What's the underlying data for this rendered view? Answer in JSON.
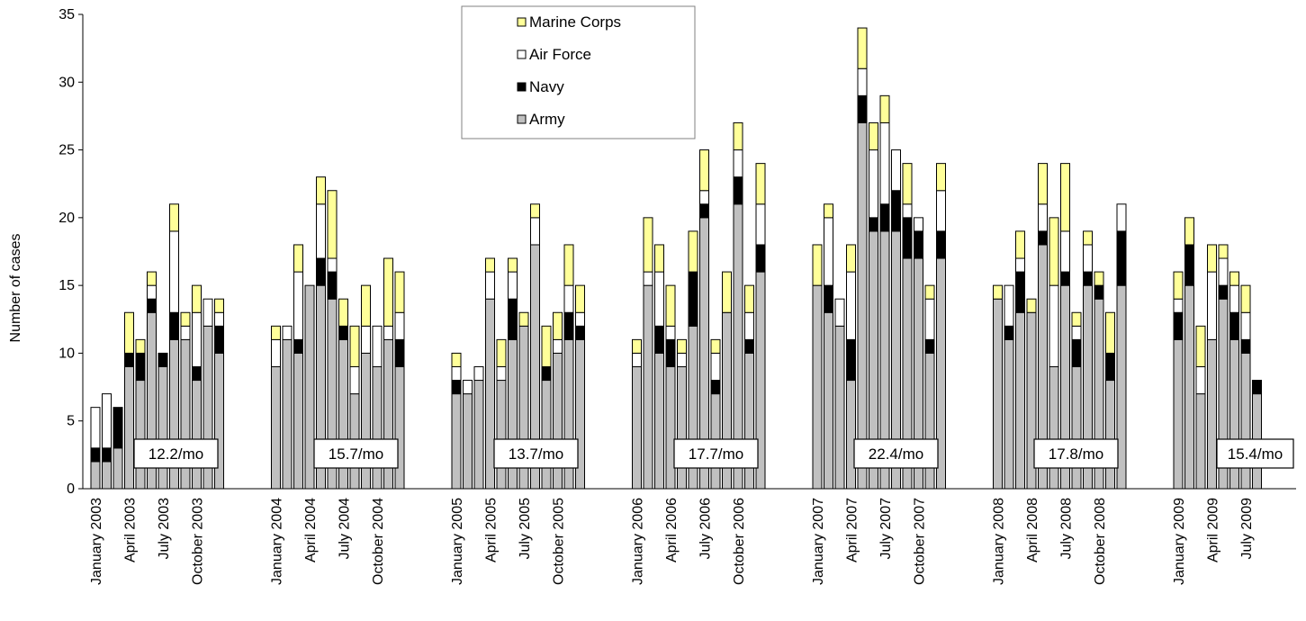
{
  "chart_data": {
    "type": "bar",
    "stacked": true,
    "ylabel": "Number of cases",
    "ylim": [
      0,
      35
    ],
    "yticks": [
      0,
      5,
      10,
      15,
      20,
      25,
      30,
      35
    ],
    "legend_position": "top-center",
    "series": [
      {
        "name": "Army",
        "color": "#c0c0c0"
      },
      {
        "name": "Navy",
        "color": "#000000"
      },
      {
        "name": "Air Force",
        "color": "#ffffff"
      },
      {
        "name": "Marine Corps",
        "color": "#ffff99"
      }
    ],
    "legend_order": [
      "Marine Corps",
      "Air Force",
      "Navy",
      "Army"
    ],
    "years": [
      {
        "year": 2003,
        "average_label": "12.2/mo",
        "tick_labels": [
          {
            "month_index": 0,
            "label": "January 2003"
          },
          {
            "month_index": 3,
            "label": "April 2003"
          },
          {
            "month_index": 6,
            "label": "July 2003"
          },
          {
            "month_index": 9,
            "label": "October 2003"
          }
        ],
        "months": [
          {
            "Army": 2,
            "Navy": 1,
            "Air Force": 3,
            "Marine Corps": 0
          },
          {
            "Army": 2,
            "Navy": 1,
            "Air Force": 4,
            "Marine Corps": 0
          },
          {
            "Army": 3,
            "Navy": 3,
            "Air Force": 0,
            "Marine Corps": 0
          },
          {
            "Army": 9,
            "Navy": 1,
            "Air Force": 0,
            "Marine Corps": 3
          },
          {
            "Army": 8,
            "Navy": 2,
            "Air Force": 0,
            "Marine Corps": 1
          },
          {
            "Army": 13,
            "Navy": 1,
            "Air Force": 1,
            "Marine Corps": 1
          },
          {
            "Army": 9,
            "Navy": 1,
            "Air Force": 0,
            "Marine Corps": 0
          },
          {
            "Army": 11,
            "Navy": 2,
            "Air Force": 6,
            "Marine Corps": 2
          },
          {
            "Army": 11,
            "Navy": 0,
            "Air Force": 1,
            "Marine Corps": 1
          },
          {
            "Army": 8,
            "Navy": 1,
            "Air Force": 4,
            "Marine Corps": 2
          },
          {
            "Army": 12,
            "Navy": 0,
            "Air Force": 2,
            "Marine Corps": 0
          },
          {
            "Army": 10,
            "Navy": 2,
            "Air Force": 1,
            "Marine Corps": 1
          }
        ]
      },
      {
        "year": 2004,
        "average_label": "15.7/mo",
        "tick_labels": [
          {
            "month_index": 0,
            "label": "January 2004"
          },
          {
            "month_index": 3,
            "label": "April 2004"
          },
          {
            "month_index": 6,
            "label": "July 2004"
          },
          {
            "month_index": 9,
            "label": "October 2004"
          }
        ],
        "months": [
          {
            "Army": 9,
            "Navy": 0,
            "Air Force": 2,
            "Marine Corps": 1
          },
          {
            "Army": 11,
            "Navy": 0,
            "Air Force": 1,
            "Marine Corps": 0
          },
          {
            "Army": 10,
            "Navy": 1,
            "Air Force": 5,
            "Marine Corps": 2
          },
          {
            "Army": 15,
            "Navy": 0,
            "Air Force": 0,
            "Marine Corps": 0
          },
          {
            "Army": 15,
            "Navy": 2,
            "Air Force": 4,
            "Marine Corps": 2
          },
          {
            "Army": 14,
            "Navy": 2,
            "Air Force": 1,
            "Marine Corps": 5
          },
          {
            "Army": 11,
            "Navy": 1,
            "Air Force": 0,
            "Marine Corps": 2
          },
          {
            "Army": 7,
            "Navy": 0,
            "Air Force": 2,
            "Marine Corps": 3
          },
          {
            "Army": 10,
            "Navy": 0,
            "Air Force": 2,
            "Marine Corps": 3
          },
          {
            "Army": 9,
            "Navy": 0,
            "Air Force": 3,
            "Marine Corps": 0
          },
          {
            "Army": 11,
            "Navy": 0,
            "Air Force": 1,
            "Marine Corps": 5
          },
          {
            "Army": 9,
            "Navy": 2,
            "Air Force": 2,
            "Marine Corps": 3
          }
        ]
      },
      {
        "year": 2005,
        "average_label": "13.7/mo",
        "tick_labels": [
          {
            "month_index": 0,
            "label": "January 2005"
          },
          {
            "month_index": 3,
            "label": "April 2005"
          },
          {
            "month_index": 6,
            "label": "July 2005"
          },
          {
            "month_index": 9,
            "label": "October 2005"
          }
        ],
        "months": [
          {
            "Army": 7,
            "Navy": 1,
            "Air Force": 1,
            "Marine Corps": 1
          },
          {
            "Army": 7,
            "Navy": 0,
            "Air Force": 1,
            "Marine Corps": 0
          },
          {
            "Army": 8,
            "Navy": 0,
            "Air Force": 1,
            "Marine Corps": 0
          },
          {
            "Army": 14,
            "Navy": 0,
            "Air Force": 2,
            "Marine Corps": 1
          },
          {
            "Army": 8,
            "Navy": 0,
            "Air Force": 1,
            "Marine Corps": 2
          },
          {
            "Army": 11,
            "Navy": 3,
            "Air Force": 2,
            "Marine Corps": 1
          },
          {
            "Army": 12,
            "Navy": 0,
            "Air Force": 0,
            "Marine Corps": 1
          },
          {
            "Army": 18,
            "Navy": 0,
            "Air Force": 2,
            "Marine Corps": 1
          },
          {
            "Army": 8,
            "Navy": 1,
            "Air Force": 0,
            "Marine Corps": 3
          },
          {
            "Army": 10,
            "Navy": 0,
            "Air Force": 1,
            "Marine Corps": 2
          },
          {
            "Army": 11,
            "Navy": 2,
            "Air Force": 2,
            "Marine Corps": 3
          },
          {
            "Army": 11,
            "Navy": 1,
            "Air Force": 1,
            "Marine Corps": 2
          }
        ]
      },
      {
        "year": 2006,
        "average_label": "17.7/mo",
        "tick_labels": [
          {
            "month_index": 0,
            "label": "January 2006"
          },
          {
            "month_index": 3,
            "label": "April 2006"
          },
          {
            "month_index": 6,
            "label": "July 2006"
          },
          {
            "month_index": 9,
            "label": "October 2006"
          }
        ],
        "months": [
          {
            "Army": 9,
            "Navy": 0,
            "Air Force": 1,
            "Marine Corps": 1
          },
          {
            "Army": 15,
            "Navy": 0,
            "Air Force": 1,
            "Marine Corps": 4
          },
          {
            "Army": 10,
            "Navy": 2,
            "Air Force": 4,
            "Marine Corps": 2
          },
          {
            "Army": 9,
            "Navy": 2,
            "Air Force": 1,
            "Marine Corps": 3
          },
          {
            "Army": 9,
            "Navy": 0,
            "Air Force": 1,
            "Marine Corps": 1
          },
          {
            "Army": 12,
            "Navy": 4,
            "Air Force": 0,
            "Marine Corps": 3
          },
          {
            "Army": 20,
            "Navy": 1,
            "Air Force": 1,
            "Marine Corps": 3
          },
          {
            "Army": 7,
            "Navy": 1,
            "Air Force": 2,
            "Marine Corps": 1
          },
          {
            "Army": 13,
            "Navy": 0,
            "Air Force": 0,
            "Marine Corps": 3
          },
          {
            "Army": 21,
            "Navy": 2,
            "Air Force": 2,
            "Marine Corps": 2
          },
          {
            "Army": 10,
            "Navy": 1,
            "Air Force": 2,
            "Marine Corps": 2
          },
          {
            "Army": 16,
            "Navy": 2,
            "Air Force": 3,
            "Marine Corps": 3
          }
        ]
      },
      {
        "year": 2007,
        "average_label": "22.4/mo",
        "tick_labels": [
          {
            "month_index": 0,
            "label": "January 2007"
          },
          {
            "month_index": 3,
            "label": "April 2007"
          },
          {
            "month_index": 6,
            "label": "July 2007"
          },
          {
            "month_index": 9,
            "label": "October 2007"
          }
        ],
        "months": [
          {
            "Army": 15,
            "Navy": 0,
            "Air Force": 0,
            "Marine Corps": 3
          },
          {
            "Army": 13,
            "Navy": 2,
            "Air Force": 5,
            "Marine Corps": 1
          },
          {
            "Army": 12,
            "Navy": 0,
            "Air Force": 2,
            "Marine Corps": 0
          },
          {
            "Army": 8,
            "Navy": 3,
            "Air Force": 5,
            "Marine Corps": 2
          },
          {
            "Army": 27,
            "Navy": 2,
            "Air Force": 2,
            "Marine Corps": 3
          },
          {
            "Army": 19,
            "Navy": 1,
            "Air Force": 5,
            "Marine Corps": 2
          },
          {
            "Army": 19,
            "Navy": 2,
            "Air Force": 6,
            "Marine Corps": 2
          },
          {
            "Army": 19,
            "Navy": 3,
            "Air Force": 3,
            "Marine Corps": 0
          },
          {
            "Army": 17,
            "Navy": 3,
            "Air Force": 1,
            "Marine Corps": 3
          },
          {
            "Army": 17,
            "Navy": 2,
            "Air Force": 1,
            "Marine Corps": 0
          },
          {
            "Army": 10,
            "Navy": 1,
            "Air Force": 3,
            "Marine Corps": 1
          },
          {
            "Army": 17,
            "Navy": 2,
            "Air Force": 3,
            "Marine Corps": 2
          }
        ]
      },
      {
        "year": 2008,
        "average_label": "17.8/mo",
        "tick_labels": [
          {
            "month_index": 0,
            "label": "January 2008"
          },
          {
            "month_index": 3,
            "label": "April 2008"
          },
          {
            "month_index": 6,
            "label": "July 2008"
          },
          {
            "month_index": 9,
            "label": "October 2008"
          }
        ],
        "months": [
          {
            "Army": 14,
            "Navy": 0,
            "Air Force": 0,
            "Marine Corps": 1
          },
          {
            "Army": 11,
            "Navy": 1,
            "Air Force": 3,
            "Marine Corps": 0
          },
          {
            "Army": 13,
            "Navy": 3,
            "Air Force": 1,
            "Marine Corps": 2
          },
          {
            "Army": 13,
            "Navy": 0,
            "Air Force": 0,
            "Marine Corps": 1
          },
          {
            "Army": 18,
            "Navy": 1,
            "Air Force": 2,
            "Marine Corps": 3
          },
          {
            "Army": 9,
            "Navy": 0,
            "Air Force": 6,
            "Marine Corps": 5
          },
          {
            "Army": 15,
            "Navy": 1,
            "Air Force": 3,
            "Marine Corps": 5
          },
          {
            "Army": 9,
            "Navy": 2,
            "Air Force": 1,
            "Marine Corps": 1
          },
          {
            "Army": 15,
            "Navy": 1,
            "Air Force": 2,
            "Marine Corps": 1
          },
          {
            "Army": 14,
            "Navy": 1,
            "Air Force": 0,
            "Marine Corps": 1
          },
          {
            "Army": 8,
            "Navy": 2,
            "Air Force": 0,
            "Marine Corps": 3
          },
          {
            "Army": 15,
            "Navy": 4,
            "Air Force": 2,
            "Marine Corps": 0
          }
        ]
      },
      {
        "year": 2009,
        "average_label": "15.4/mo",
        "tick_labels": [
          {
            "month_index": 0,
            "label": "January 2009"
          },
          {
            "month_index": 3,
            "label": "April 2009"
          },
          {
            "month_index": 6,
            "label": "July 2009"
          }
        ],
        "months": [
          {
            "Army": 11,
            "Navy": 2,
            "Air Force": 1,
            "Marine Corps": 2
          },
          {
            "Army": 15,
            "Navy": 3,
            "Air Force": 0,
            "Marine Corps": 2
          },
          {
            "Army": 7,
            "Navy": 0,
            "Air Force": 2,
            "Marine Corps": 3
          },
          {
            "Army": 11,
            "Navy": 0,
            "Air Force": 5,
            "Marine Corps": 2
          },
          {
            "Army": 14,
            "Navy": 1,
            "Air Force": 2,
            "Marine Corps": 1
          },
          {
            "Army": 11,
            "Navy": 2,
            "Air Force": 2,
            "Marine Corps": 1
          },
          {
            "Army": 10,
            "Navy": 1,
            "Air Force": 2,
            "Marine Corps": 2
          },
          {
            "Army": 7,
            "Navy": 1,
            "Air Force": 0,
            "Marine Corps": 0
          }
        ]
      }
    ]
  }
}
